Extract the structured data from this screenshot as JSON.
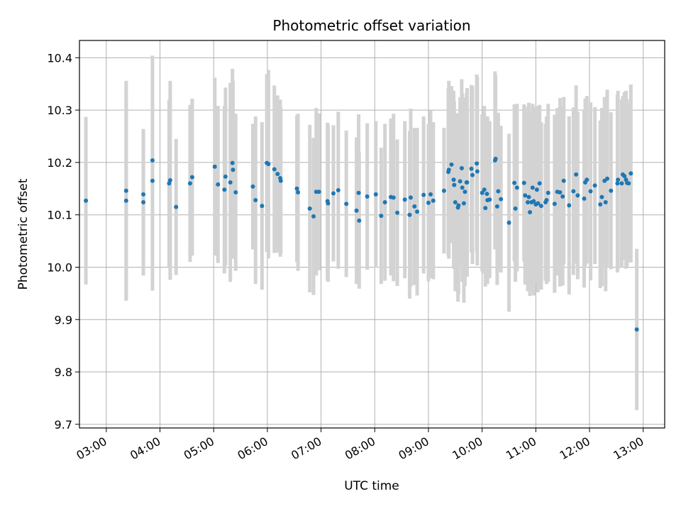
{
  "chart_data": {
    "type": "scatter",
    "title": "Photometric offset variation",
    "xlabel": "UTC time",
    "ylabel": "Photometric offset",
    "x_unit": "hours UTC",
    "xlim": [
      2.5,
      13.4
    ],
    "ylim": [
      9.693,
      10.433
    ],
    "x_ticks": [
      {
        "value": 3,
        "label": "03:00"
      },
      {
        "value": 4,
        "label": "04:00"
      },
      {
        "value": 5,
        "label": "05:00"
      },
      {
        "value": 6,
        "label": "06:00"
      },
      {
        "value": 7,
        "label": "07:00"
      },
      {
        "value": 8,
        "label": "08:00"
      },
      {
        "value": 9,
        "label": "09:00"
      },
      {
        "value": 10,
        "label": "10:00"
      },
      {
        "value": 11,
        "label": "11:00"
      },
      {
        "value": 12,
        "label": "12:00"
      },
      {
        "value": 13,
        "label": "13:00"
      }
    ],
    "y_ticks": [
      {
        "value": 9.7,
        "label": "9.7"
      },
      {
        "value": 9.8,
        "label": "9.8"
      },
      {
        "value": 9.9,
        "label": "9.9"
      },
      {
        "value": 10.0,
        "label": "10.0"
      },
      {
        "value": 10.1,
        "label": "10.1"
      },
      {
        "value": 10.2,
        "label": "10.2"
      },
      {
        "value": 10.3,
        "label": "10.3"
      },
      {
        "value": 10.4,
        "label": "10.4"
      }
    ],
    "grid": true,
    "series": [
      {
        "name": "photometric offset",
        "marker_color": "#1f77b4",
        "errorbar_color": "#d3d3d3",
        "points": [
          [
            2.62,
            10.127,
            0.16
          ],
          [
            3.37,
            10.146,
            0.21
          ],
          [
            3.37,
            10.127,
            0.19
          ],
          [
            3.69,
            10.139,
            0.12
          ],
          [
            3.69,
            10.124,
            0.14
          ],
          [
            3.86,
            10.204,
            0.2
          ],
          [
            3.86,
            10.165,
            0.21
          ],
          [
            4.17,
            10.16,
            0.16
          ],
          [
            4.19,
            10.166,
            0.19
          ],
          [
            4.3,
            10.115,
            0.13
          ],
          [
            4.56,
            10.16,
            0.15
          ],
          [
            4.6,
            10.172,
            0.15
          ],
          [
            5.02,
            10.192,
            0.17
          ],
          [
            5.08,
            10.158,
            0.15
          ],
          [
            5.2,
            10.148,
            0.16
          ],
          [
            5.22,
            10.173,
            0.17
          ],
          [
            5.31,
            10.162,
            0.19
          ],
          [
            5.35,
            10.199,
            0.18
          ],
          [
            5.36,
            10.186,
            0.17
          ],
          [
            5.41,
            10.143,
            0.15
          ],
          [
            5.73,
            10.154,
            0.12
          ],
          [
            5.78,
            10.128,
            0.16
          ],
          [
            5.9,
            10.117,
            0.16
          ],
          [
            5.99,
            10.199,
            0.17
          ],
          [
            6.02,
            10.197,
            0.18
          ],
          [
            6.13,
            10.187,
            0.16
          ],
          [
            6.19,
            10.178,
            0.15
          ],
          [
            6.24,
            10.17,
            0.15
          ],
          [
            6.25,
            10.165,
            0.14
          ],
          [
            6.55,
            10.15,
            0.14
          ],
          [
            6.57,
            10.143,
            0.15
          ],
          [
            6.79,
            10.112,
            0.16
          ],
          [
            6.86,
            10.097,
            0.15
          ],
          [
            6.91,
            10.144,
            0.16
          ],
          [
            6.96,
            10.144,
            0.15
          ],
          [
            7.12,
            10.126,
            0.15
          ],
          [
            7.13,
            10.122,
            0.15
          ],
          [
            7.23,
            10.141,
            0.13
          ],
          [
            7.32,
            10.147,
            0.15
          ],
          [
            7.47,
            10.121,
            0.14
          ],
          [
            7.66,
            10.108,
            0.14
          ],
          [
            7.7,
            10.142,
            0.15
          ],
          [
            7.71,
            10.089,
            0.13
          ],
          [
            7.86,
            10.135,
            0.14
          ],
          [
            8.02,
            10.139,
            0.14
          ],
          [
            8.12,
            10.098,
            0.13
          ],
          [
            8.19,
            10.124,
            0.15
          ],
          [
            8.3,
            10.134,
            0.15
          ],
          [
            8.35,
            10.133,
            0.16
          ],
          [
            8.42,
            10.104,
            0.14
          ],
          [
            8.56,
            10.129,
            0.15
          ],
          [
            8.65,
            10.1,
            0.16
          ],
          [
            8.67,
            10.133,
            0.17
          ],
          [
            8.74,
            10.116,
            0.15
          ],
          [
            8.79,
            10.106,
            0.16
          ],
          [
            8.91,
            10.138,
            0.15
          ],
          [
            9.0,
            10.123,
            0.15
          ],
          [
            9.04,
            10.139,
            0.16
          ],
          [
            9.09,
            10.127,
            0.15
          ],
          [
            9.29,
            10.146,
            0.12
          ],
          [
            9.37,
            10.182,
            0.16
          ],
          [
            9.38,
            10.186,
            0.17
          ],
          [
            9.43,
            10.196,
            0.15
          ],
          [
            9.47,
            10.167,
            0.17
          ],
          [
            9.48,
            10.157,
            0.16
          ],
          [
            9.5,
            10.124,
            0.17
          ],
          [
            9.55,
            10.114,
            0.18
          ],
          [
            9.56,
            10.118,
            0.17
          ],
          [
            9.59,
            10.164,
            0.16
          ],
          [
            9.62,
            10.189,
            0.17
          ],
          [
            9.63,
            10.152,
            0.18
          ],
          [
            9.66,
            10.122,
            0.19
          ],
          [
            9.68,
            10.144,
            0.18
          ],
          [
            9.71,
            10.162,
            0.17
          ],
          [
            9.72,
            10.162,
            0.18
          ],
          [
            9.8,
            10.188,
            0.16
          ],
          [
            9.82,
            10.176,
            0.17
          ],
          [
            9.9,
            10.198,
            0.17
          ],
          [
            9.91,
            10.183,
            0.18
          ],
          [
            10.0,
            10.142,
            0.15
          ],
          [
            10.04,
            10.148,
            0.16
          ],
          [
            10.06,
            10.113,
            0.15
          ],
          [
            10.09,
            10.14,
            0.14
          ],
          [
            10.1,
            10.128,
            0.16
          ],
          [
            10.14,
            10.129,
            0.15
          ],
          [
            10.24,
            10.204,
            0.17
          ],
          [
            10.25,
            10.207,
            0.16
          ],
          [
            10.28,
            10.116,
            0.15
          ],
          [
            10.3,
            10.145,
            0.15
          ],
          [
            10.35,
            10.13,
            0.14
          ],
          [
            10.5,
            10.085,
            0.17
          ],
          [
            10.6,
            10.161,
            0.15
          ],
          [
            10.62,
            10.112,
            0.14
          ],
          [
            10.65,
            10.152,
            0.16
          ],
          [
            10.78,
            10.161,
            0.15
          ],
          [
            10.8,
            10.137,
            0.17
          ],
          [
            10.85,
            10.124,
            0.17
          ],
          [
            10.87,
            10.134,
            0.18
          ],
          [
            10.89,
            10.105,
            0.16
          ],
          [
            10.92,
            10.124,
            0.17
          ],
          [
            10.94,
            10.152,
            0.16
          ],
          [
            10.96,
            10.126,
            0.18
          ],
          [
            11.0,
            10.12,
            0.15
          ],
          [
            11.02,
            10.148,
            0.16
          ],
          [
            11.04,
            10.122,
            0.17
          ],
          [
            11.07,
            10.16,
            0.15
          ],
          [
            11.1,
            10.117,
            0.16
          ],
          [
            11.18,
            10.124,
            0.15
          ],
          [
            11.2,
            10.128,
            0.16
          ],
          [
            11.23,
            10.142,
            0.17
          ],
          [
            11.35,
            10.121,
            0.17
          ],
          [
            11.4,
            10.144,
            0.16
          ],
          [
            11.45,
            10.143,
            0.18
          ],
          [
            11.5,
            10.135,
            0.17
          ],
          [
            11.52,
            10.165,
            0.16
          ],
          [
            11.62,
            10.118,
            0.17
          ],
          [
            11.7,
            10.145,
            0.16
          ],
          [
            11.75,
            10.177,
            0.17
          ],
          [
            11.78,
            10.137,
            0.16
          ],
          [
            11.9,
            10.131,
            0.17
          ],
          [
            11.92,
            10.162,
            0.16
          ],
          [
            11.95,
            10.167,
            0.16
          ],
          [
            12.02,
            10.145,
            0.17
          ],
          [
            12.1,
            10.156,
            0.15
          ],
          [
            12.2,
            10.12,
            0.16
          ],
          [
            12.23,
            10.134,
            0.17
          ],
          [
            12.28,
            10.165,
            0.16
          ],
          [
            12.3,
            10.124,
            0.17
          ],
          [
            12.33,
            10.169,
            0.17
          ],
          [
            12.4,
            10.146,
            0.15
          ],
          [
            12.52,
            10.16,
            0.17
          ],
          [
            12.53,
            10.167,
            0.17
          ],
          [
            12.6,
            10.16,
            0.16
          ],
          [
            12.62,
            10.177,
            0.15
          ],
          [
            12.65,
            10.174,
            0.16
          ],
          [
            12.68,
            10.167,
            0.17
          ],
          [
            12.7,
            10.161,
            0.16
          ],
          [
            12.73,
            10.16,
            0.15
          ],
          [
            12.77,
            10.179,
            0.17
          ],
          [
            12.88,
            9.881,
            0.154
          ]
        ]
      }
    ]
  }
}
